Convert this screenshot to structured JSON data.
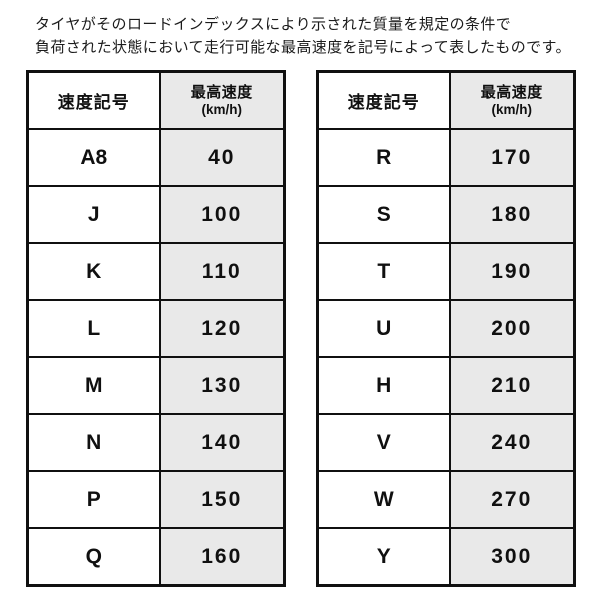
{
  "description": {
    "line1": "タイヤがそのロードインデックスにより示された質量を規定の条件で",
    "line2": "負荷された状態において走行可能な最高速度を記号によって表したものです。"
  },
  "colors": {
    "border": "#101010",
    "speed_column_fill": "#e9e9e9",
    "background": "#ffffff",
    "text": "#101010"
  },
  "left_table": {
    "header": {
      "symbol": "速度記号",
      "speed": "最高速度",
      "unit": "(km/h)"
    },
    "rows": [
      {
        "symbol": "A8",
        "speed": "40"
      },
      {
        "symbol": "J",
        "speed": "100"
      },
      {
        "symbol": "K",
        "speed": "110"
      },
      {
        "symbol": "L",
        "speed": "120"
      },
      {
        "symbol": "M",
        "speed": "130"
      },
      {
        "symbol": "N",
        "speed": "140"
      },
      {
        "symbol": "P",
        "speed": "150"
      },
      {
        "symbol": "Q",
        "speed": "160"
      }
    ]
  },
  "right_table": {
    "header": {
      "symbol": "速度記号",
      "speed": "最高速度",
      "unit": "(km/h)"
    },
    "rows": [
      {
        "symbol": "R",
        "speed": "170"
      },
      {
        "symbol": "S",
        "speed": "180"
      },
      {
        "symbol": "T",
        "speed": "190"
      },
      {
        "symbol": "U",
        "speed": "200"
      },
      {
        "symbol": "H",
        "speed": "210"
      },
      {
        "symbol": "V",
        "speed": "240"
      },
      {
        "symbol": "W",
        "speed": "270"
      },
      {
        "symbol": "Y",
        "speed": "300"
      }
    ]
  }
}
